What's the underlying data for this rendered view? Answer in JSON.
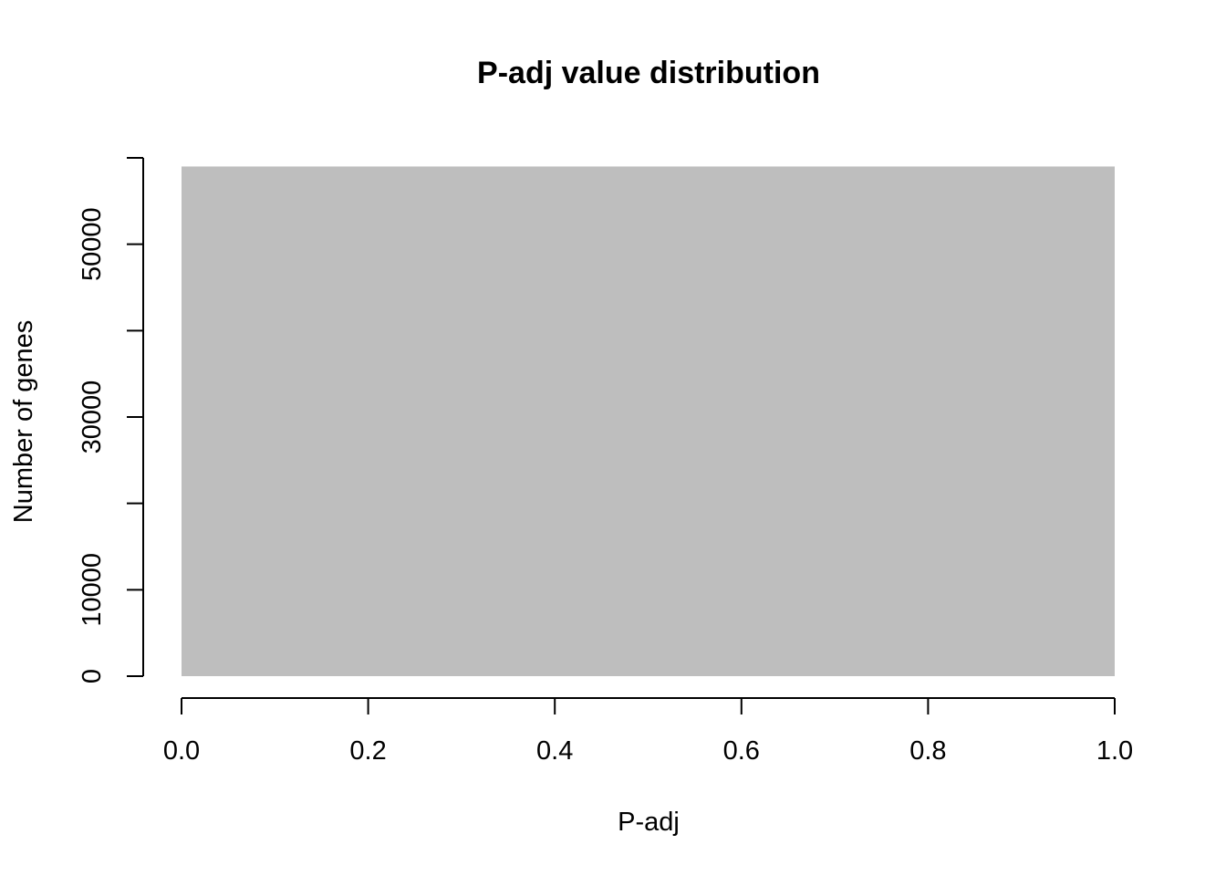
{
  "chart_data": {
    "type": "bar",
    "title": "P-adj value distribution",
    "xlabel": "P-adj",
    "ylabel": "Number of genes",
    "bins": [
      {
        "x0": 0.0,
        "x1": 1.0,
        "count": 59000
      }
    ],
    "xlim": [
      0.0,
      1.0
    ],
    "ylim": [
      0,
      60000
    ],
    "x_ticks": [
      0.0,
      0.2,
      0.4,
      0.6,
      0.8,
      1.0
    ],
    "x_tick_labels": [
      "0.0",
      "0.2",
      "0.4",
      "0.6",
      "0.8",
      "1.0"
    ],
    "y_ticks": [
      0,
      10000,
      20000,
      30000,
      40000,
      50000,
      60000
    ],
    "y_tick_labels": [
      "0",
      "10000",
      "",
      "30000",
      "",
      "50000",
      ""
    ],
    "bar_color": "#bebebe",
    "grid": false
  }
}
